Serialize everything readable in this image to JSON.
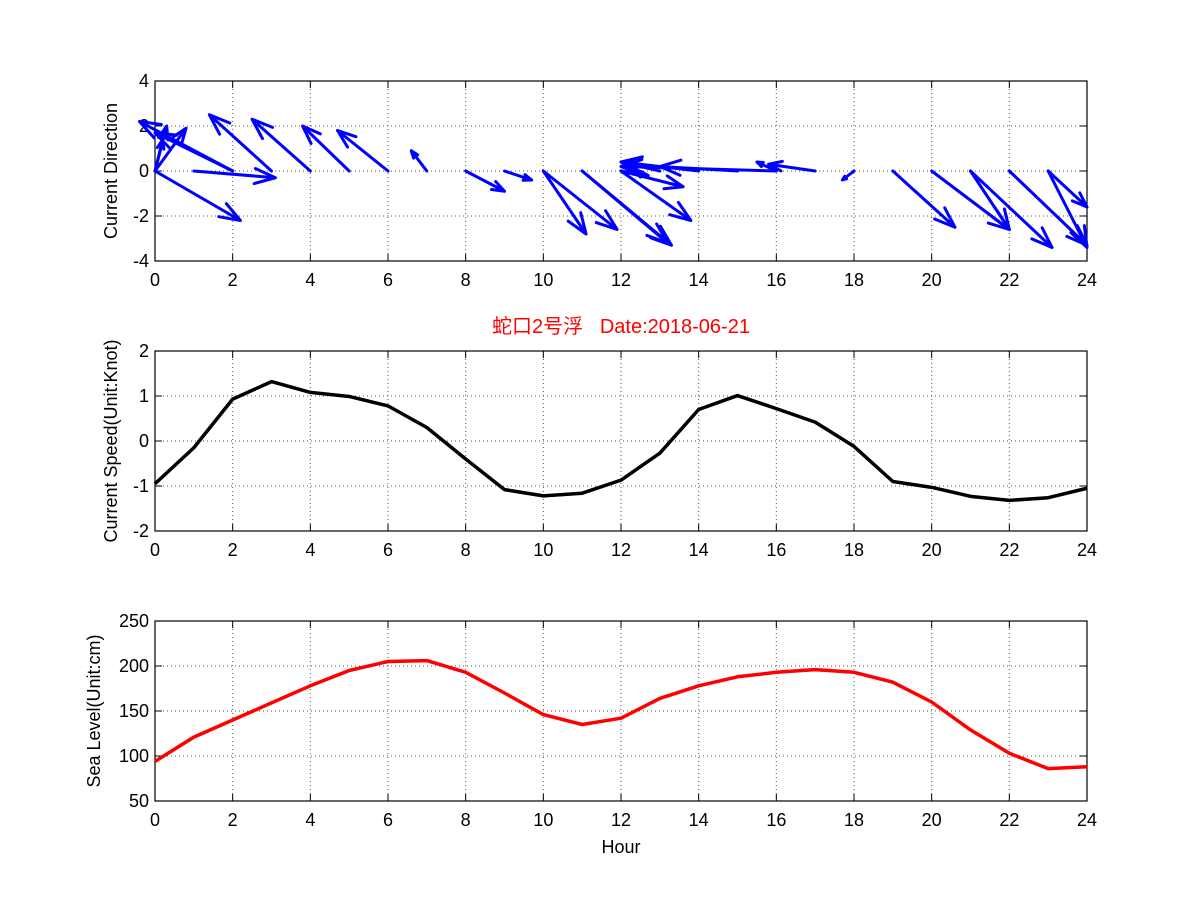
{
  "colors": {
    "quiver": "#0000ff",
    "speed_line": "#000000",
    "sea_level_line": "#ff0000",
    "title": "#ff0000"
  },
  "chart_data": [
    {
      "type": "quiver",
      "title": "",
      "xlabel": "",
      "ylabel": "Current Direction",
      "xlim": [
        0,
        24
      ],
      "ylim": [
        -4,
        4
      ],
      "xticks": [
        "0",
        "2",
        "4",
        "6",
        "8",
        "10",
        "12",
        "14",
        "16",
        "18",
        "20",
        "22",
        "24"
      ],
      "yticks": [
        "-4",
        "-2",
        "0",
        "2",
        "4"
      ],
      "grid": true,
      "vectors": [
        {
          "x": 0,
          "y": 0,
          "u": 0.8,
          "v": 1.9
        },
        {
          "x": 0,
          "y": 0,
          "u": 0.3,
          "v": 2.0
        },
        {
          "x": 0,
          "y": 0,
          "u": 0.2,
          "v": 1.4
        },
        {
          "x": 0,
          "y": 0,
          "u": 2.2,
          "v": -2.2
        },
        {
          "x": 1,
          "y": 0,
          "u": 2.1,
          "v": -0.3
        },
        {
          "x": 2,
          "y": 0,
          "u": -2.0,
          "v": 1.7
        },
        {
          "x": 2,
          "y": 0,
          "u": -2.4,
          "v": 2.2
        },
        {
          "x": 3,
          "y": 0,
          "u": -1.6,
          "v": 2.5
        },
        {
          "x": 4,
          "y": 0,
          "u": -1.5,
          "v": 2.3
        },
        {
          "x": 5,
          "y": 0,
          "u": -1.2,
          "v": 2.0
        },
        {
          "x": 6,
          "y": 0,
          "u": -1.3,
          "v": 1.8
        },
        {
          "x": 7,
          "y": 0,
          "u": -0.4,
          "v": 0.9
        },
        {
          "x": 8,
          "y": 0,
          "u": 1.0,
          "v": -0.9
        },
        {
          "x": 9,
          "y": 0,
          "u": 0.7,
          "v": -0.4
        },
        {
          "x": 10,
          "y": 0,
          "u": 1.1,
          "v": -2.8
        },
        {
          "x": 10,
          "y": 0,
          "u": 1.9,
          "v": -2.6
        },
        {
          "x": 11,
          "y": 0,
          "u": 2.3,
          "v": -3.3
        },
        {
          "x": 11,
          "y": 0,
          "u": 2.2,
          "v": -3.2
        },
        {
          "x": 12,
          "y": 0,
          "u": 1.8,
          "v": -2.2
        },
        {
          "x": 12,
          "y": 0,
          "u": 1.6,
          "v": -0.7
        },
        {
          "x": 12,
          "y": 0,
          "u": 0.7,
          "v": -0.2
        },
        {
          "x": 13,
          "y": 0,
          "u": -1.0,
          "v": 0.4
        },
        {
          "x": 14,
          "y": 0,
          "u": -2.0,
          "v": 0.4
        },
        {
          "x": 15,
          "y": 0,
          "u": -2.0,
          "v": 0.2
        },
        {
          "x": 16,
          "y": 0,
          "u": -4.0,
          "v": 0.2
        },
        {
          "x": 16,
          "y": 0,
          "u": -0.5,
          "v": 0.4
        },
        {
          "x": 17,
          "y": 0,
          "u": -1.2,
          "v": 0.3
        },
        {
          "x": 18,
          "y": 0,
          "u": -0.3,
          "v": -0.4
        },
        {
          "x": 19,
          "y": 0,
          "u": 1.6,
          "v": -2.5
        },
        {
          "x": 20,
          "y": 0,
          "u": 2.0,
          "v": -2.6
        },
        {
          "x": 21,
          "y": 0,
          "u": 2.1,
          "v": -3.4
        },
        {
          "x": 21,
          "y": 0,
          "u": 1.0,
          "v": -2.6
        },
        {
          "x": 22,
          "y": 0,
          "u": 2.0,
          "v": -3.3
        },
        {
          "x": 23,
          "y": 0,
          "u": 1.0,
          "v": -3.4
        },
        {
          "x": 23,
          "y": 0,
          "u": 1.0,
          "v": -1.6
        }
      ]
    },
    {
      "type": "line",
      "title": "蛇口2号浮   Date:2018-06-21",
      "xlabel": "",
      "ylabel": "Current Speed(Unit:Knot)",
      "xlim": [
        0,
        24
      ],
      "ylim": [
        -2,
        2
      ],
      "xticks": [
        "0",
        "2",
        "4",
        "6",
        "8",
        "10",
        "12",
        "14",
        "16",
        "18",
        "20",
        "22",
        "24"
      ],
      "yticks": [
        "-2",
        "-1",
        "0",
        "1",
        "2"
      ],
      "grid": true,
      "series": [
        {
          "x": [
            0,
            1,
            2,
            3,
            4,
            5,
            6,
            7,
            8,
            9,
            10,
            11,
            12,
            13,
            14,
            15,
            16,
            17,
            18,
            19,
            20,
            21,
            22,
            23,
            24
          ],
          "values": [
            -0.95,
            -0.15,
            0.93,
            1.32,
            1.08,
            0.99,
            0.78,
            0.3,
            -0.4,
            -1.08,
            -1.22,
            -1.16,
            -0.87,
            -0.27,
            0.7,
            1.01,
            0.72,
            0.42,
            -0.12,
            -0.9,
            -1.03,
            -1.23,
            -1.32,
            -1.26,
            -1.05
          ]
        }
      ]
    },
    {
      "type": "line",
      "title": "",
      "xlabel": "Hour",
      "ylabel": "Sea Level(Unit:cm)",
      "xlim": [
        0,
        24
      ],
      "ylim": [
        50,
        250
      ],
      "xticks": [
        "0",
        "2",
        "4",
        "6",
        "8",
        "10",
        "12",
        "14",
        "16",
        "18",
        "20",
        "22",
        "24"
      ],
      "yticks": [
        "50",
        "100",
        "150",
        "200",
        "250"
      ],
      "grid": true,
      "series": [
        {
          "x": [
            0,
            1,
            2,
            3,
            4,
            5,
            6,
            7,
            8,
            9,
            10,
            11,
            12,
            13,
            14,
            15,
            16,
            17,
            18,
            19,
            20,
            21,
            22,
            23,
            24
          ],
          "values": [
            94,
            121,
            140,
            159,
            178,
            195,
            205,
            206,
            193,
            170,
            146,
            135,
            142,
            164,
            178,
            188,
            193,
            196,
            193,
            182,
            160,
            129,
            103,
            86,
            88
          ]
        }
      ]
    }
  ]
}
